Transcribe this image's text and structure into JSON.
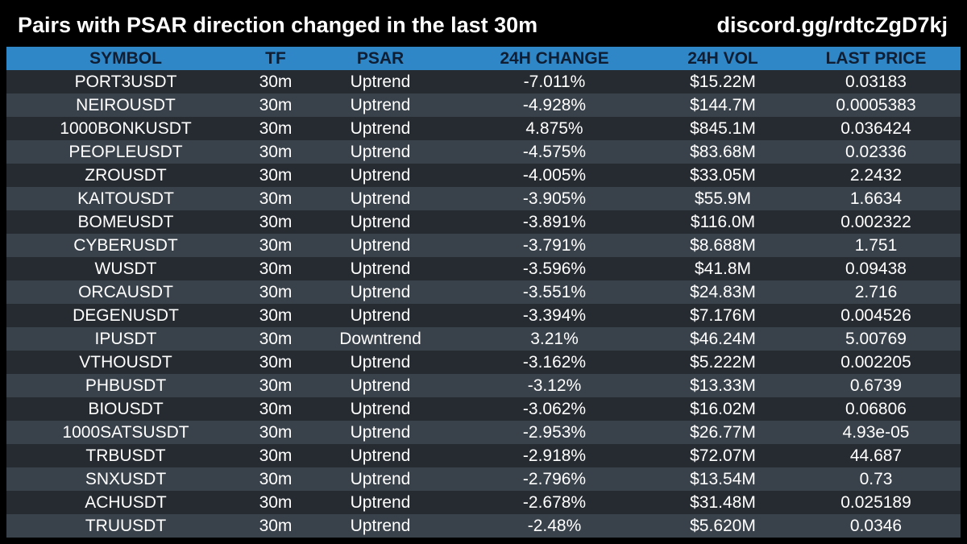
{
  "header": {
    "title": "Pairs with PSAR direction changed in the last 30m",
    "link": "discord.gg/rdtcZgD7kj"
  },
  "table": {
    "columns": [
      "SYMBOL",
      "TF",
      "PSAR",
      "24H CHANGE",
      "24H VOL",
      "LAST PRICE"
    ],
    "rows": [
      [
        "PORT3USDT",
        "30m",
        "Uptrend",
        "-7.011%",
        "$15.22M",
        "0.03183"
      ],
      [
        "NEIROUSDT",
        "30m",
        "Uptrend",
        "-4.928%",
        "$144.7M",
        "0.0005383"
      ],
      [
        "1000BONKUSDT",
        "30m",
        "Uptrend",
        "4.875%",
        "$845.1M",
        "0.036424"
      ],
      [
        "PEOPLEUSDT",
        "30m",
        "Uptrend",
        "-4.575%",
        "$83.68M",
        "0.02336"
      ],
      [
        "ZROUSDT",
        "30m",
        "Uptrend",
        "-4.005%",
        "$33.05M",
        "2.2432"
      ],
      [
        "KAITOUSDT",
        "30m",
        "Uptrend",
        "-3.905%",
        "$55.9M",
        "1.6634"
      ],
      [
        "BOMEUSDT",
        "30m",
        "Uptrend",
        "-3.891%",
        "$116.0M",
        "0.002322"
      ],
      [
        "CYBERUSDT",
        "30m",
        "Uptrend",
        "-3.791%",
        "$8.688M",
        "1.751"
      ],
      [
        "WUSDT",
        "30m",
        "Uptrend",
        "-3.596%",
        "$41.8M",
        "0.09438"
      ],
      [
        "ORCAUSDT",
        "30m",
        "Uptrend",
        "-3.551%",
        "$24.83M",
        "2.716"
      ],
      [
        "DEGENUSDT",
        "30m",
        "Uptrend",
        "-3.394%",
        "$7.176M",
        "0.004526"
      ],
      [
        "IPUSDT",
        "30m",
        "Downtrend",
        "3.21%",
        "$46.24M",
        "5.00769"
      ],
      [
        "VTHOUSDT",
        "30m",
        "Uptrend",
        "-3.162%",
        "$5.222M",
        "0.002205"
      ],
      [
        "PHBUSDT",
        "30m",
        "Uptrend",
        "-3.12%",
        "$13.33M",
        "0.6739"
      ],
      [
        "BIOUSDT",
        "30m",
        "Uptrend",
        "-3.062%",
        "$16.02M",
        "0.06806"
      ],
      [
        "1000SATSUSDT",
        "30m",
        "Uptrend",
        "-2.953%",
        "$26.77M",
        "4.93e-05"
      ],
      [
        "TRBUSDT",
        "30m",
        "Uptrend",
        "-2.918%",
        "$72.07M",
        "44.687"
      ],
      [
        "SNXUSDT",
        "30m",
        "Uptrend",
        "-2.796%",
        "$13.54M",
        "0.73"
      ],
      [
        "ACHUSDT",
        "30m",
        "Uptrend",
        "-2.678%",
        "$31.48M",
        "0.025189"
      ],
      [
        "TRUUSDT",
        "30m",
        "Uptrend",
        "-2.48%",
        "$5.620M",
        "0.0346"
      ]
    ]
  },
  "colors": {
    "background": "#000000",
    "header_row": "#2f87c8",
    "row_dark": "#262b31",
    "row_light": "#39414a",
    "header_text": "#0f1e33",
    "text": "#ffffff"
  }
}
